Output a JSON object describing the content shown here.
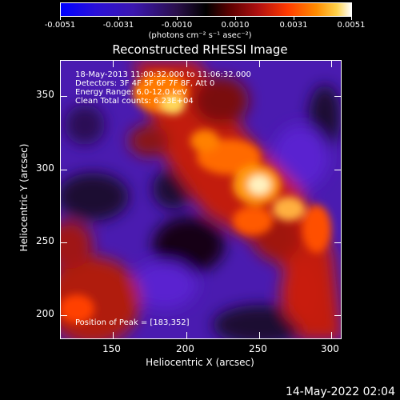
{
  "colorbar": {
    "ticks": [
      "-0.0051",
      "-0.0031",
      "-0.0010",
      "0.0010",
      "0.0031",
      "0.0051"
    ],
    "units": "(photons cm⁻² s⁻¹ asec⁻²)"
  },
  "plot": {
    "title": "Reconstructed RHESSI Image",
    "xlabel": "Heliocentric X (arcsec)",
    "ylabel": "Heliocentric Y (arcsec)",
    "xticks": [
      "150",
      "200",
      "250",
      "300"
    ],
    "yticks": [
      "350",
      "300",
      "250",
      "200"
    ],
    "info": {
      "line1": "18-May-2013 11:00:32.000 to 11:06:32.000",
      "line2": "Detectors: 3F 4F 5F 6F 7F 8F, Att 0",
      "line3": "Energy Range: 6.0-12.0 keV",
      "line4": "Clean     Total counts: 6.23E+04"
    },
    "peak": "Position of Peak = [183,352]"
  },
  "footer": {
    "timestamp": "14-May-2022 02:04"
  }
}
